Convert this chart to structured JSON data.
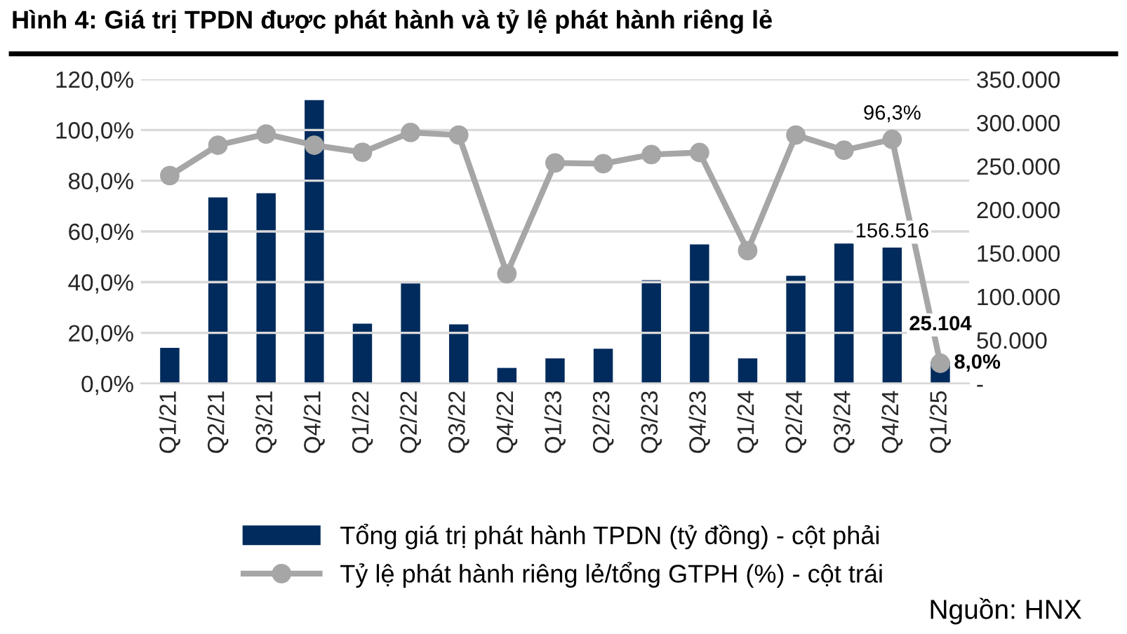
{
  "chart_data": {
    "type": "bar",
    "title": "Hình 4: Giá trị TPDN được phát hành và tỷ lệ phát hành riêng lẻ",
    "categories": [
      "Q1/21",
      "Q2/21",
      "Q3/21",
      "Q4/21",
      "Q1/22",
      "Q2/22",
      "Q3/22",
      "Q4/22",
      "Q1/23",
      "Q2/23",
      "Q3/23",
      "Q4/23",
      "Q1/24",
      "Q2/24",
      "Q3/24",
      "Q4/24",
      "Q1/25"
    ],
    "series": [
      {
        "name": "Tổng giá trị phát hành TPDN (tỷ đồng) - cột phải",
        "axis": "y2",
        "color": "#002b5c",
        "values": [
          41000,
          214000,
          219000,
          326000,
          69000,
          115000,
          68000,
          18000,
          29000,
          40000,
          119000,
          160000,
          29000,
          124000,
          161000,
          156516,
          25104
        ],
        "value_labels": [
          null,
          null,
          null,
          null,
          null,
          null,
          null,
          null,
          null,
          null,
          null,
          null,
          null,
          null,
          null,
          "156.516",
          "25.104"
        ]
      },
      {
        "name": "Tỷ lệ phát hành riêng lẻ/tổng GTPH (%) - cột trái",
        "type": "line",
        "axis": "y",
        "color": "#a6a6a6",
        "marker": "circle",
        "values": [
          82.0,
          94.0,
          98.4,
          94.0,
          91.2,
          99.0,
          98.0,
          43.3,
          87.0,
          86.7,
          90.3,
          91.1,
          52.4,
          98.0,
          92.0,
          96.3,
          8.0
        ],
        "value_labels": [
          null,
          null,
          null,
          null,
          null,
          null,
          null,
          null,
          null,
          null,
          null,
          null,
          null,
          null,
          null,
          "96,3%",
          "8,0%"
        ]
      }
    ],
    "ylim": [
      0,
      120
    ],
    "yticks": [
      {
        "value": 0,
        "label": "0,0%"
      },
      {
        "value": 20,
        "label": "20,0%"
      },
      {
        "value": 40,
        "label": "40,0%"
      },
      {
        "value": 60,
        "label": "60,0%"
      },
      {
        "value": 80,
        "label": "80,0%"
      },
      {
        "value": 100,
        "label": "100,0%"
      },
      {
        "value": 120,
        "label": "120,0%"
      }
    ],
    "y2lim": [
      0,
      350000
    ],
    "y2ticks": [
      {
        "value": 0,
        "label": "-"
      },
      {
        "value": 50000,
        "label": "50.000"
      },
      {
        "value": 100000,
        "label": "100.000"
      },
      {
        "value": 150000,
        "label": "150.000"
      },
      {
        "value": 200000,
        "label": "200.000"
      },
      {
        "value": 250000,
        "label": "250.000"
      },
      {
        "value": 300000,
        "label": "300.000"
      },
      {
        "value": 350000,
        "label": "350.000"
      }
    ],
    "grid": "y",
    "legend": "bottom",
    "annotations": [
      "Nguồn: HNX"
    ]
  }
}
